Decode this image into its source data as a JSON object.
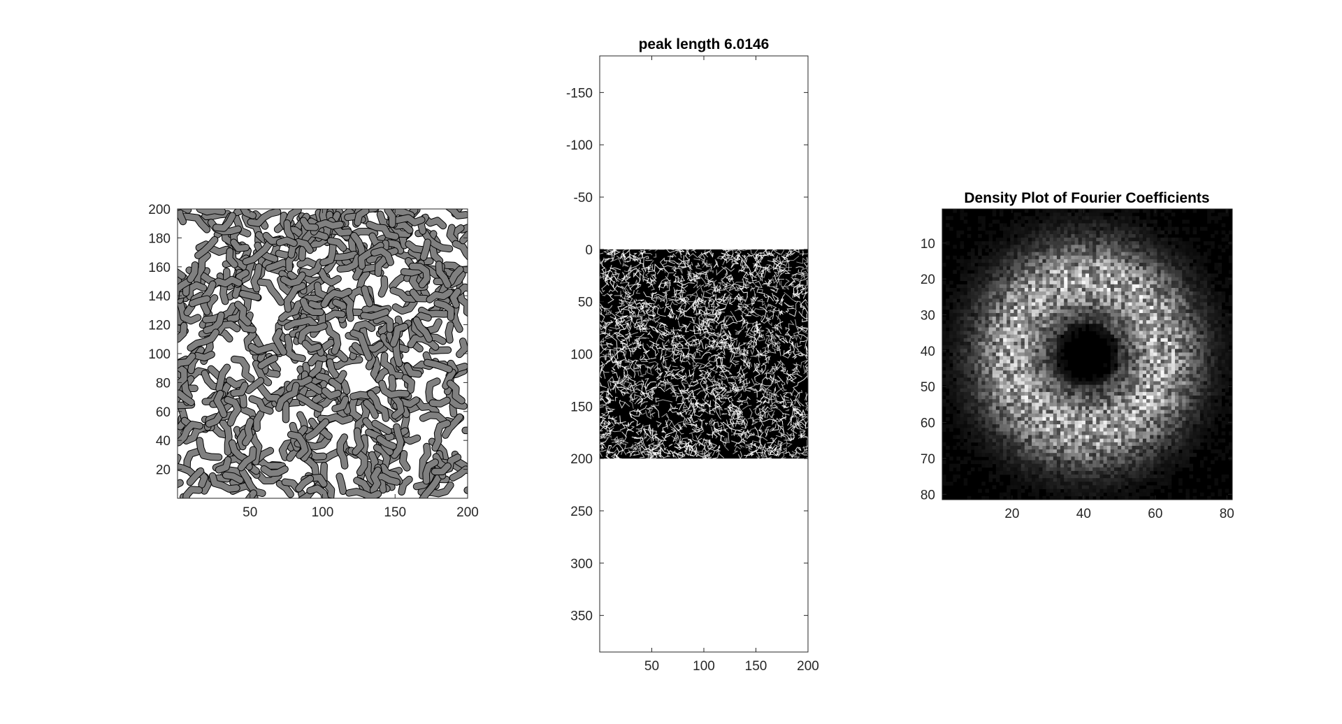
{
  "chart_data": [
    {
      "type": "heatmap",
      "title": "",
      "xlabel": "",
      "ylabel": "",
      "xlim": [
        0,
        200
      ],
      "ylim": [
        0,
        200
      ],
      "y_direction": "normal",
      "xticks": [
        50,
        100,
        150,
        200
      ],
      "yticks": [
        20,
        40,
        60,
        80,
        100,
        120,
        140,
        160,
        180,
        200
      ],
      "colors": {
        "phase_a": "#808080",
        "phase_b": "#ffffff",
        "boundary": "#000000"
      },
      "grid": false
    },
    {
      "type": "heatmap",
      "title": "peak length 6.0146",
      "xlabel": "",
      "ylabel": "",
      "xlim": [
        0,
        200
      ],
      "ylim": [
        -185,
        385
      ],
      "image_extent_y": [
        0,
        200
      ],
      "y_direction": "reverse",
      "xticks": [
        50,
        100,
        150,
        200
      ],
      "yticks": [
        -150,
        -100,
        -50,
        0,
        50,
        100,
        150,
        200,
        250,
        300,
        350
      ],
      "colors": {
        "background": "#000000",
        "edges": "#ffffff"
      },
      "grid": false
    },
    {
      "type": "heatmap",
      "title": "Density Plot of Fourier Coefficients",
      "xlabel": "",
      "ylabel": "",
      "xlim": [
        0.5,
        81.5
      ],
      "ylim": [
        0.5,
        81.5
      ],
      "y_direction": "reverse",
      "xticks": [
        20,
        40,
        60,
        80
      ],
      "yticks": [
        10,
        20,
        30,
        40,
        50,
        60,
        70,
        80
      ],
      "grid_size": 81,
      "ring_center": [
        41,
        41
      ],
      "ring_radius": 21,
      "colormap": "gray",
      "grid": false
    }
  ]
}
